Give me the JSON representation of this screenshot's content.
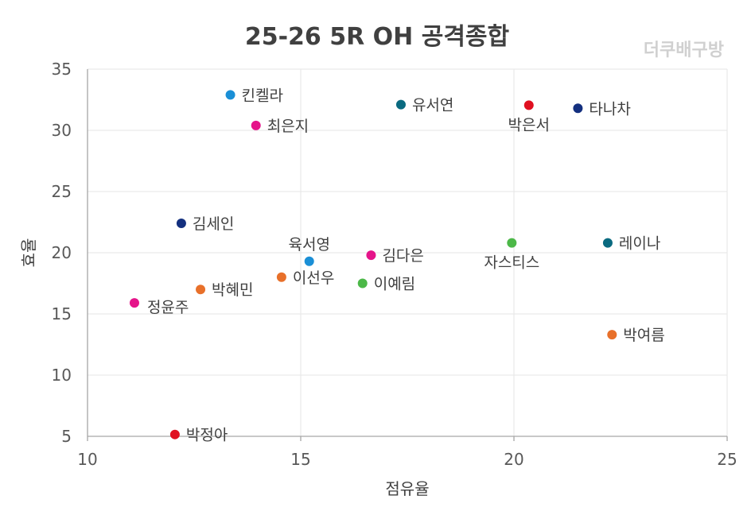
{
  "chart_data": {
    "type": "scatter",
    "title": "25-26 5R OH 공격종합",
    "watermark": "더쿠배구방",
    "xlabel": "점유율",
    "ylabel": "효율",
    "xlim": [
      10,
      25
    ],
    "ylim": [
      5,
      35
    ],
    "xticks": [
      10,
      15,
      20,
      25
    ],
    "yticks": [
      5,
      10,
      15,
      20,
      25,
      30,
      35
    ],
    "grid": true,
    "points": [
      {
        "name": "킨켈라",
        "x": 13.35,
        "y": 32.9,
        "color": "#1a8fd6",
        "label_pos": "right"
      },
      {
        "name": "최은지",
        "x": 13.95,
        "y": 30.4,
        "color": "#e5148a",
        "label_pos": "right"
      },
      {
        "name": "유서연",
        "x": 17.35,
        "y": 32.1,
        "color": "#0a6a80",
        "label_pos": "right"
      },
      {
        "name": "박은서",
        "x": 20.35,
        "y": 32.05,
        "color": "#e01020",
        "label_pos": "below"
      },
      {
        "name": "타나차",
        "x": 21.5,
        "y": 31.8,
        "color": "#14307f",
        "label_pos": "right"
      },
      {
        "name": "김세인",
        "x": 12.2,
        "y": 22.4,
        "color": "#14307f",
        "label_pos": "right"
      },
      {
        "name": "육서영",
        "x": 15.2,
        "y": 19.3,
        "color": "#1a8fd6",
        "label_pos": "above"
      },
      {
        "name": "김다은",
        "x": 16.65,
        "y": 19.8,
        "color": "#e5148a",
        "label_pos": "right"
      },
      {
        "name": "자스티스",
        "x": 19.95,
        "y": 20.8,
        "color": "#4cb848",
        "label_pos": "below"
      },
      {
        "name": "레이나",
        "x": 22.2,
        "y": 20.8,
        "color": "#0a6a80",
        "label_pos": "right"
      },
      {
        "name": "이선우",
        "x": 14.55,
        "y": 18.0,
        "color": "#e8702a",
        "label_pos": "right"
      },
      {
        "name": "이예림",
        "x": 16.45,
        "y": 17.5,
        "color": "#4cb848",
        "label_pos": "right"
      },
      {
        "name": "박혜민",
        "x": 12.65,
        "y": 17.0,
        "color": "#e8702a",
        "label_pos": "right"
      },
      {
        "name": "정윤주",
        "x": 11.1,
        "y": 15.9,
        "color": "#e5148a",
        "label_pos": "below-right"
      },
      {
        "name": "박여름",
        "x": 22.3,
        "y": 13.3,
        "color": "#e8702a",
        "label_pos": "right"
      },
      {
        "name": "박정아",
        "x": 12.05,
        "y": 5.15,
        "color": "#e01020",
        "label_pos": "right"
      }
    ]
  }
}
